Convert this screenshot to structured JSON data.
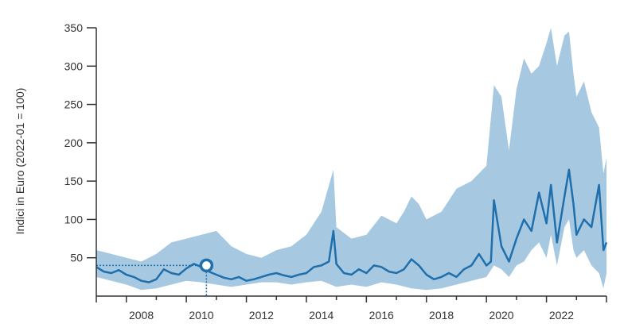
{
  "chart_data": {
    "type": "area",
    "ylabel": "Indici in Euro (2022-01 = 100)",
    "xlabel": "",
    "xlim": [
      2007.0,
      2024.0
    ],
    "ylim": [
      0,
      350
    ],
    "x_ticks": [
      2008,
      2010,
      2012,
      2014,
      2016,
      2018,
      2020,
      2022
    ],
    "x_tick_labels": [
      "2008",
      "2010",
      "2012",
      "2014",
      "2016",
      "2018",
      "2020",
      "2022"
    ],
    "y_ticks": [
      50,
      100,
      150,
      200,
      250,
      300,
      350
    ],
    "y_tick_labels": [
      "50",
      "100",
      "150",
      "200",
      "250",
      "300",
      "350"
    ],
    "colors": {
      "band": "#a6c8e0",
      "line": "#1f6fad",
      "axis": "#333333",
      "marker_fill": "#ffffff"
    },
    "highlight": {
      "x": 2010.67,
      "y": 40
    },
    "series": [
      {
        "role": "median-line",
        "x": [
          2007.0,
          2007.25,
          2007.5,
          2007.75,
          2008.0,
          2008.25,
          2008.5,
          2008.75,
          2009.0,
          2009.25,
          2009.5,
          2009.75,
          2010.0,
          2010.25,
          2010.5,
          2010.67,
          2010.75,
          2011.0,
          2011.25,
          2011.5,
          2011.75,
          2012.0,
          2012.25,
          2012.5,
          2012.75,
          2013.0,
          2013.25,
          2013.5,
          2013.75,
          2014.0,
          2014.25,
          2014.5,
          2014.75,
          2014.9,
          2015.0,
          2015.25,
          2015.5,
          2015.75,
          2016.0,
          2016.25,
          2016.5,
          2016.75,
          2017.0,
          2017.25,
          2017.5,
          2017.75,
          2018.0,
          2018.25,
          2018.5,
          2018.75,
          2019.0,
          2019.25,
          2019.5,
          2019.75,
          2020.0,
          2020.15,
          2020.25,
          2020.5,
          2020.75,
          2021.0,
          2021.25,
          2021.5,
          2021.75,
          2022.0,
          2022.15,
          2022.35,
          2022.6,
          2022.75,
          2022.9,
          2023.0,
          2023.25,
          2023.5,
          2023.75,
          2023.9,
          2024.0
        ],
        "values": [
          38,
          32,
          30,
          34,
          28,
          25,
          20,
          18,
          22,
          35,
          30,
          28,
          36,
          42,
          38,
          40,
          32,
          28,
          24,
          22,
          25,
          20,
          22,
          25,
          28,
          30,
          27,
          25,
          28,
          30,
          38,
          40,
          45,
          85,
          42,
          30,
          28,
          35,
          30,
          40,
          38,
          32,
          30,
          35,
          48,
          40,
          28,
          22,
          25,
          30,
          25,
          35,
          40,
          55,
          40,
          45,
          125,
          65,
          45,
          75,
          100,
          85,
          135,
          95,
          145,
          70,
          130,
          165,
          120,
          80,
          100,
          90,
          145,
          60,
          70
        ]
      },
      {
        "role": "band-upper",
        "x": [
          2007.0,
          2007.5,
          2008.0,
          2008.5,
          2009.0,
          2009.5,
          2010.0,
          2010.5,
          2011.0,
          2011.5,
          2012.0,
          2012.5,
          2013.0,
          2013.5,
          2014.0,
          2014.5,
          2014.9,
          2015.0,
          2015.5,
          2016.0,
          2016.5,
          2017.0,
          2017.25,
          2017.5,
          2017.75,
          2018.0,
          2018.5,
          2019.0,
          2019.5,
          2020.0,
          2020.25,
          2020.5,
          2020.75,
          2021.0,
          2021.25,
          2021.5,
          2021.75,
          2022.0,
          2022.15,
          2022.35,
          2022.6,
          2022.75,
          2022.9,
          2023.0,
          2023.25,
          2023.5,
          2023.75,
          2023.9,
          2024.0
        ],
        "values": [
          60,
          55,
          50,
          45,
          55,
          70,
          75,
          80,
          85,
          65,
          55,
          50,
          60,
          65,
          80,
          110,
          165,
          90,
          75,
          80,
          105,
          95,
          110,
          130,
          120,
          100,
          110,
          140,
          150,
          170,
          275,
          260,
          190,
          270,
          310,
          290,
          300,
          330,
          350,
          300,
          340,
          345,
          290,
          260,
          280,
          240,
          220,
          160,
          180
        ]
      },
      {
        "role": "band-lower",
        "x": [
          2007.0,
          2007.5,
          2008.0,
          2008.5,
          2009.0,
          2009.5,
          2010.0,
          2010.5,
          2011.0,
          2011.5,
          2012.0,
          2012.5,
          2013.0,
          2013.5,
          2014.0,
          2014.5,
          2015.0,
          2015.5,
          2016.0,
          2016.5,
          2017.0,
          2017.5,
          2018.0,
          2018.5,
          2019.0,
          2019.5,
          2020.0,
          2020.25,
          2020.5,
          2020.75,
          2021.0,
          2021.25,
          2021.5,
          2021.75,
          2022.0,
          2022.15,
          2022.35,
          2022.6,
          2022.75,
          2022.9,
          2023.0,
          2023.25,
          2023.5,
          2023.75,
          2023.9,
          2024.0
        ],
        "values": [
          25,
          20,
          15,
          8,
          10,
          15,
          20,
          18,
          15,
          12,
          15,
          18,
          18,
          15,
          18,
          20,
          12,
          15,
          12,
          18,
          15,
          10,
          8,
          10,
          15,
          20,
          25,
          40,
          35,
          25,
          40,
          45,
          60,
          70,
          50,
          80,
          40,
          90,
          100,
          60,
          50,
          60,
          40,
          30,
          10,
          30
        ]
      }
    ]
  }
}
